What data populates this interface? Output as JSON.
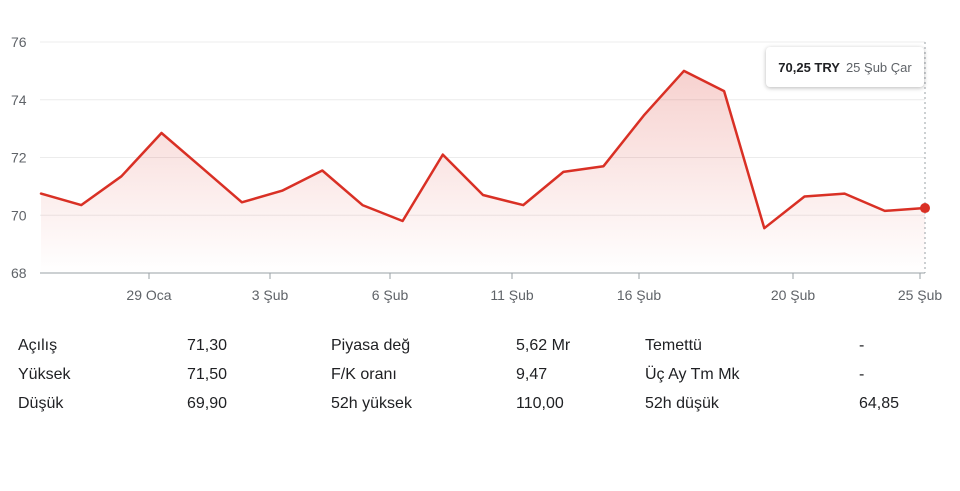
{
  "chart_data": {
    "type": "area",
    "currency": "TRY",
    "y_ticks": [
      "76",
      "74",
      "72",
      "70",
      "68"
    ],
    "x_ticks": [
      "29 Oca",
      "3 Şub",
      "6 Şub",
      "11 Şub",
      "16 Şub",
      "20 Şub",
      "25 Şub"
    ],
    "ylim": [
      68,
      76
    ],
    "grid": true,
    "series": [
      {
        "values": [
          70.75,
          70.35,
          71.35,
          72.85,
          71.65,
          70.45,
          70.85,
          71.55,
          70.35,
          69.8,
          72.1,
          70.7,
          70.35,
          71.5,
          71.7,
          73.45,
          75.0,
          74.3,
          69.55,
          70.65,
          70.75,
          70.15,
          70.25
        ]
      }
    ],
    "line_color": "#d93025"
  },
  "tooltip": {
    "price": "70,25 TRY",
    "date": "25 Şub Çar"
  },
  "stats": [
    {
      "label": "Açılış",
      "value": "71,30"
    },
    {
      "label": "Piyasa değ",
      "value": "5,62 Mr"
    },
    {
      "label": "Temettü",
      "value": "-"
    },
    {
      "label": "Yüksek",
      "value": "71,50"
    },
    {
      "label": "F/K oranı",
      "value": "9,47"
    },
    {
      "label": "Üç Ay Tm Mk",
      "value": "-"
    },
    {
      "label": "Düşük",
      "value": "69,90"
    },
    {
      "label": "52h yüksek",
      "value": "110,00"
    },
    {
      "label": "52h düşük",
      "value": "64,85"
    }
  ]
}
